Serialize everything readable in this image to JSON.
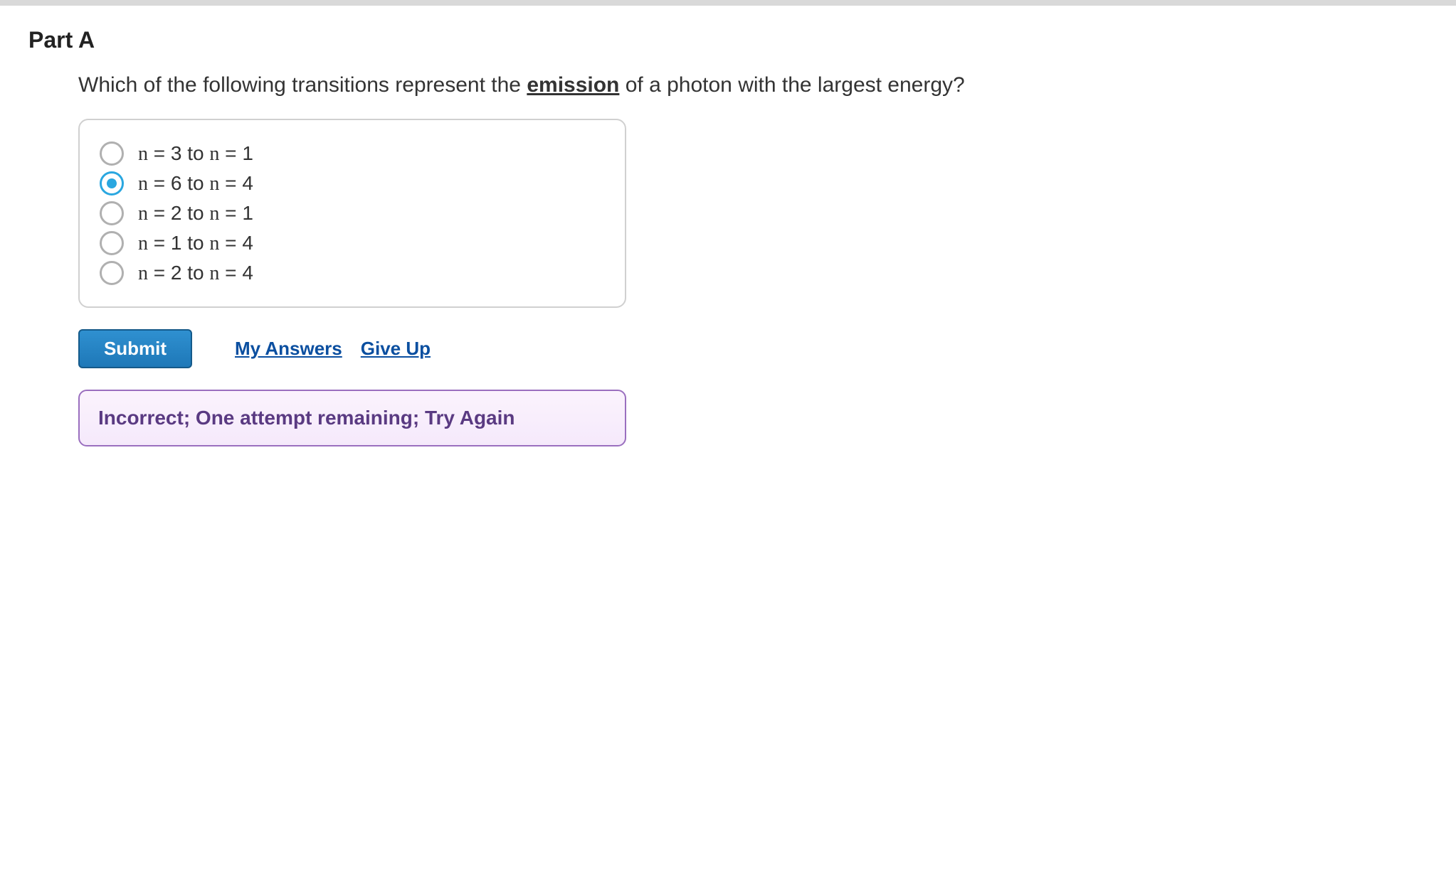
{
  "part": {
    "heading": "Part A",
    "question_prefix": "Which of the following transitions represent the ",
    "question_emph": "emission",
    "question_suffix": " of a photon with the largest energy?"
  },
  "choices": {
    "selected_index": 1,
    "items": [
      {
        "label": "n = 3 to n = 1"
      },
      {
        "label": "n = 6 to n = 4"
      },
      {
        "label": "n = 2 to n = 1"
      },
      {
        "label": "n = 1 to n = 4"
      },
      {
        "label": "n = 2 to n = 4"
      }
    ]
  },
  "actions": {
    "submit_label": "Submit",
    "my_answers_label": "My Answers",
    "give_up_label": "Give Up"
  },
  "feedback": {
    "message": "Incorrect; One attempt remaining; Try Again"
  },
  "colors": {
    "rule": "#d9d9d9",
    "choice_border": "#d0d0d0",
    "radio_border": "#b0b0b0",
    "radio_selected": "#2aa7e0",
    "submit_bg_top": "#2f90d0",
    "submit_bg_bottom": "#1e78b8",
    "submit_border": "#155a8a",
    "link_color": "#0b4fa0",
    "feedback_border": "#9a6fbf",
    "feedback_bg_top": "#fbf3fd",
    "feedback_bg_bottom": "#f5e9fb",
    "feedback_text": "#5a3a82"
  }
}
